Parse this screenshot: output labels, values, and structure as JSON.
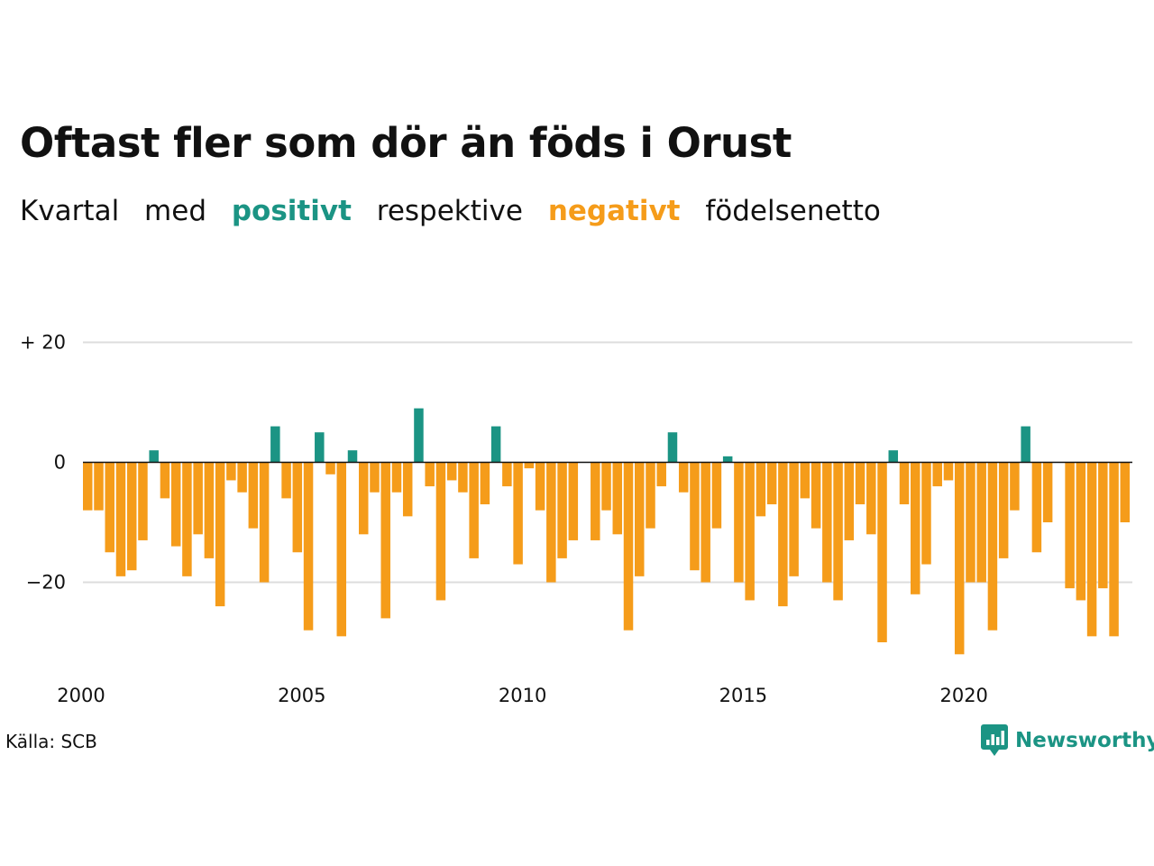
{
  "header": {
    "title": "Oftast fler som dör än föds i Orust",
    "subtitle": {
      "w1": "Kvartal",
      "w2": "med",
      "positive": "positivt",
      "w3": "respektive",
      "negative": "negativt",
      "w4": "födelsenetto"
    }
  },
  "footer": {
    "source": "Källa: SCB",
    "brand": "Newsworthy"
  },
  "colors": {
    "positive": "#1b9484",
    "negative": "#f59c1a",
    "grid": "#dddddd",
    "zero_line": "#111111"
  },
  "chart_data": {
    "type": "bar",
    "title": "Oftast fler som dör än föds i Orust",
    "xlabel": "",
    "ylabel": "",
    "ylim": [
      -35,
      21
    ],
    "y_ticks": [
      {
        "value": 20,
        "label": "+ 20"
      },
      {
        "value": 0,
        "label": "0"
      },
      {
        "value": -20,
        "label": "−20"
      }
    ],
    "x_ticks": [
      "2000",
      "2005",
      "2010",
      "2015",
      "2020"
    ],
    "start_year": 2000,
    "grid": true,
    "legend": "none",
    "categories": [
      "2000 K1",
      "2000 K2",
      "2000 K3",
      "2000 K4",
      "2001 K1",
      "2001 K2",
      "2001 K3",
      "2001 K4",
      "2002 K1",
      "2002 K2",
      "2002 K3",
      "2002 K4",
      "2003 K1",
      "2003 K2",
      "2003 K3",
      "2003 K4",
      "2004 K1",
      "2004 K2",
      "2004 K3",
      "2004 K4",
      "2005 K1",
      "2005 K2",
      "2005 K3",
      "2005 K4",
      "2006 K1",
      "2006 K2",
      "2006 K3",
      "2006 K4",
      "2007 K1",
      "2007 K2",
      "2007 K3",
      "2007 K4",
      "2008 K1",
      "2008 K2",
      "2008 K3",
      "2008 K4",
      "2009 K1",
      "2009 K2",
      "2009 K3",
      "2009 K4",
      "2010 K1",
      "2010 K2",
      "2010 K3",
      "2010 K4",
      "2011 K1",
      "2011 K2",
      "2011 K3",
      "2011 K4",
      "2012 K1",
      "2012 K2",
      "2012 K3",
      "2012 K4",
      "2013 K1",
      "2013 K2",
      "2013 K3",
      "2013 K4",
      "2014 K1",
      "2014 K2",
      "2014 K3",
      "2014 K4",
      "2015 K1",
      "2015 K2",
      "2015 K3",
      "2015 K4",
      "2016 K1",
      "2016 K2",
      "2016 K3",
      "2016 K4",
      "2017 K1",
      "2017 K2",
      "2017 K3",
      "2017 K4",
      "2018 K1",
      "2018 K2",
      "2018 K3",
      "2018 K4",
      "2019 K1",
      "2019 K2",
      "2019 K3",
      "2019 K4",
      "2020 K1",
      "2020 K2",
      "2020 K3",
      "2020 K4",
      "2021 K1",
      "2021 K2",
      "2021 K3",
      "2021 K4",
      "2022 K1",
      "2022 K2",
      "2022 K3",
      "2022 K4",
      "2023 K1",
      "2023 K2",
      "2023 K3",
      "2023 K4"
    ],
    "values": [
      -8,
      -8,
      -15,
      -19,
      -18,
      -13,
      2,
      -6,
      -14,
      -19,
      -12,
      -16,
      -24,
      -3,
      -5,
      -11,
      -20,
      6,
      -6,
      -15,
      -28,
      5,
      -2,
      -29,
      2,
      -12,
      -5,
      -26,
      -5,
      -9,
      9,
      -4,
      -23,
      -3,
      -5,
      -16,
      -7,
      6,
      -4,
      -17,
      -1,
      -8,
      -20,
      -16,
      -13,
      0,
      -13,
      -8,
      -12,
      -28,
      -19,
      -11,
      -4,
      5,
      -5,
      -18,
      -20,
      -11,
      1,
      -20,
      -23,
      -9,
      -7,
      -24,
      -19,
      -6,
      -11,
      -20,
      -23,
      -13,
      -7,
      -12,
      -30,
      2,
      -7,
      -22,
      -17,
      -4,
      -3,
      -32,
      -20,
      -20,
      -28,
      -16,
      -8,
      6,
      -15,
      -10,
      0,
      -21,
      -23,
      -29,
      -21,
      -29,
      -10,
      0
    ]
  }
}
